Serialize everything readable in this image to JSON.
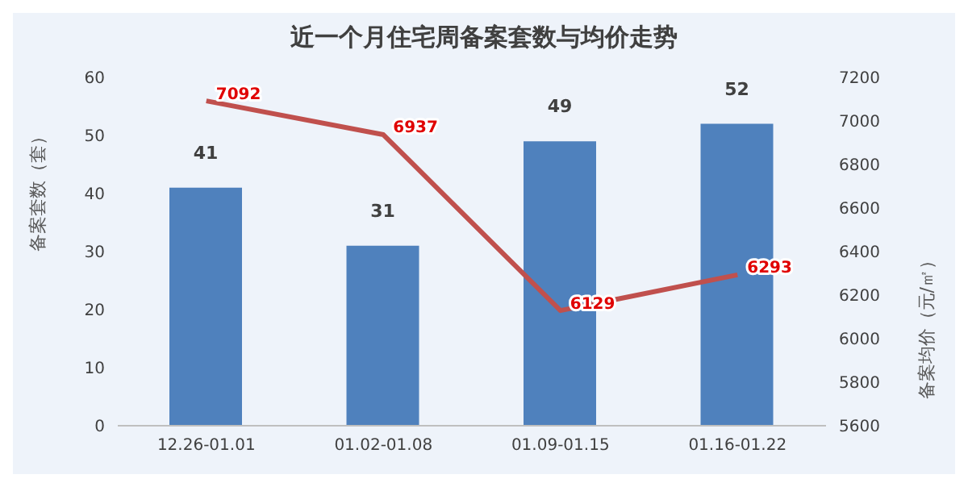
{
  "chart_data": {
    "type": "bar",
    "title": "近一个月住宅周备案套数与均价走势",
    "ylabel": "备案套数（套）",
    "y2label": "备案均价（元/㎡）",
    "categories": [
      "12.26-01.01",
      "01.02-01.08",
      "01.09-01.15",
      "01.16-01.22"
    ],
    "series": [
      {
        "color": "#4f81bd",
        "values": [
          41,
          31,
          49,
          52
        ]
      },
      {
        "type": "line",
        "axis": "y2",
        "color": "#c0504d",
        "values": [
          7092,
          6937,
          6129,
          6293
        ]
      }
    ],
    "ylim": [
      0,
      60
    ],
    "yticks": [
      0,
      10,
      20,
      30,
      40,
      50,
      60
    ],
    "y2lim": [
      5600,
      7200
    ],
    "y2ticks": [
      5600,
      5800,
      6000,
      6200,
      6400,
      6600,
      6800,
      7000,
      7200
    ],
    "data_labels": true,
    "grid": false,
    "legend": false,
    "marker": "none"
  }
}
